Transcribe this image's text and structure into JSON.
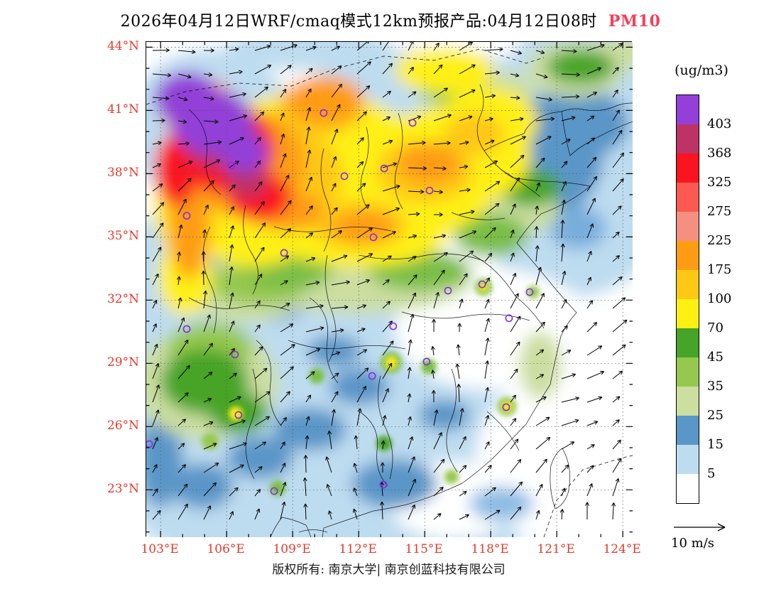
{
  "title": {
    "main": "2026年04月12日WRF/cmaq模式12km预报产品:04月12日08时",
    "species": "PM10",
    "species_color": "#f4415a"
  },
  "colorbar": {
    "unit_label": "(ug/m3)",
    "levels": [
      "403",
      "368",
      "325",
      "275",
      "225",
      "175",
      "100",
      "70",
      "45",
      "35",
      "25",
      "15",
      "5"
    ],
    "colors": [
      "#9440d8",
      "#be3366",
      "#fa1420",
      "#fc5a50",
      "#f59080",
      "#ff9c14",
      "#ffc814",
      "#fff014",
      "#46a428",
      "#96c850",
      "#ccdea0",
      "#5a96c8",
      "#bedcf0",
      "#ffffff"
    ]
  },
  "axes": {
    "lat_labels": [
      "44°N",
      "41°N",
      "38°N",
      "35°N",
      "32°N",
      "29°N",
      "26°N",
      "23°N"
    ],
    "lon_labels": [
      "103°E",
      "106°E",
      "109°E",
      "112°E",
      "115°E",
      "118°E",
      "121°E",
      "124°E"
    ],
    "label_color": "#e8392c"
  },
  "wind_legend": {
    "label": "10 m/s"
  },
  "footer": {
    "text": "版权所有: 南京大学| 南京创蓝科技有限公司"
  },
  "map": {
    "stations_lonlat": [
      [
        110.41,
        40.88
      ],
      [
        114.45,
        40.41
      ],
      [
        106.22,
        38.38
      ],
      [
        111.35,
        37.88
      ],
      [
        113.16,
        38.25
      ],
      [
        115.22,
        37.2
      ],
      [
        104.19,
        36.0
      ],
      [
        112.67,
        34.98
      ],
      [
        108.61,
        34.24
      ],
      [
        116.06,
        32.45
      ],
      [
        117.61,
        32.75
      ],
      [
        119.77,
        32.38
      ],
      [
        118.83,
        31.14
      ],
      [
        104.19,
        30.63
      ],
      [
        113.57,
        30.76
      ],
      [
        106.38,
        29.42
      ],
      [
        115.09,
        29.08
      ],
      [
        112.61,
        28.4
      ],
      [
        118.7,
        26.92
      ],
      [
        106.54,
        26.55
      ],
      [
        102.48,
        25.17
      ],
      [
        108.16,
        22.94
      ],
      [
        113.12,
        23.25
      ]
    ]
  },
  "chart_data": {
    "type": "heatmap",
    "variable": "PM10",
    "units": "ug/m3",
    "model": "WRF/cmaq 12km 预报产品",
    "valid_time": "2026-04-12 08时",
    "lon_range": [
      102.4,
      124.5
    ],
    "lat_range": [
      20.8,
      44.3
    ],
    "contour_levels": [
      5,
      15,
      25,
      35,
      45,
      70,
      100,
      175,
      225,
      275,
      325,
      368,
      403
    ],
    "level_colors_low_to_high": [
      "#ffffff",
      "#bedcf0",
      "#5a96c8",
      "#ccdea0",
      "#96c850",
      "#46a428",
      "#fff014",
      "#ffc814",
      "#ff9c14",
      "#f59080",
      "#fc5a50",
      "#fa1420",
      "#be3366",
      "#9440d8"
    ],
    "sample_grid": {
      "lon": [
        104,
        107,
        110,
        113,
        116,
        119,
        122,
        124
      ],
      "lat": [
        43,
        40,
        37,
        34,
        31,
        28,
        25,
        22
      ],
      "pm10_approx": [
        [
          180,
          60,
          40,
          70,
          100,
          60,
          15,
          10
        ],
        [
          420,
          300,
          130,
          110,
          130,
          80,
          20,
          10
        ],
        [
          350,
          160,
          140,
          140,
          90,
          40,
          15,
          12
        ],
        [
          200,
          80,
          90,
          150,
          40,
          20,
          20,
          18
        ],
        [
          120,
          30,
          20,
          30,
          10,
          25,
          12,
          8
        ],
        [
          60,
          50,
          15,
          20,
          10,
          5,
          4,
          8
        ],
        [
          20,
          40,
          20,
          25,
          8,
          4,
          10,
          12
        ],
        [
          15,
          20,
          30,
          15,
          10,
          8,
          5,
          4
        ]
      ]
    },
    "wind_overlay": {
      "reference": "10 m/s"
    },
    "legend_position": "right",
    "grid": "dotted graticule every 3 degrees",
    "summary": "PM10 maximum (>403 ug/m3, purple) over 103-108E / 37-42.5N; broad yellow-orange 70-225 band across northern China; clean (<25) over southeast coast and adjacent seas; wind vectors overlaid"
  }
}
